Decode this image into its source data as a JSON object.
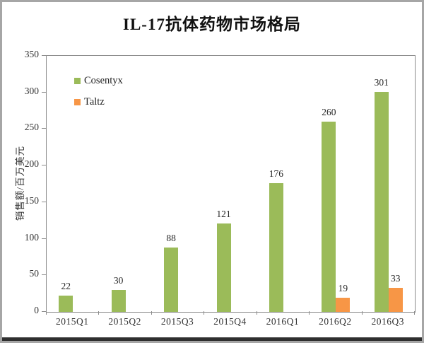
{
  "title": "IL-17抗体药物市场格局",
  "chart_data": {
    "type": "bar",
    "title": "IL-17抗体药物市场格局",
    "ylabel": "销售额/百万美元",
    "xlabel": "",
    "categories": [
      "2015Q1",
      "2015Q2",
      "2015Q3",
      "2015Q4",
      "2016Q1",
      "2016Q2",
      "2016Q3"
    ],
    "series": [
      {
        "name": "Cosentyx",
        "color": "#9bbb59",
        "values": [
          22,
          30,
          88,
          121,
          176,
          260,
          301
        ]
      },
      {
        "name": "Taltz",
        "color": "#f79646",
        "values": [
          null,
          null,
          null,
          null,
          null,
          19,
          33
        ]
      }
    ],
    "ylim": [
      0,
      350
    ],
    "ytick_step": 50,
    "grid": false,
    "legend_position": "top-left-inside",
    "bar_value_labels": true
  },
  "colors": {
    "cosentyx_green": "#9bbb59",
    "taltz_orange": "#f79646",
    "axis_line": "#8c8c8c",
    "label_text": "#262626",
    "frame_border": "#a6a6a6",
    "bottom_edge": "#2f2f2f"
  }
}
